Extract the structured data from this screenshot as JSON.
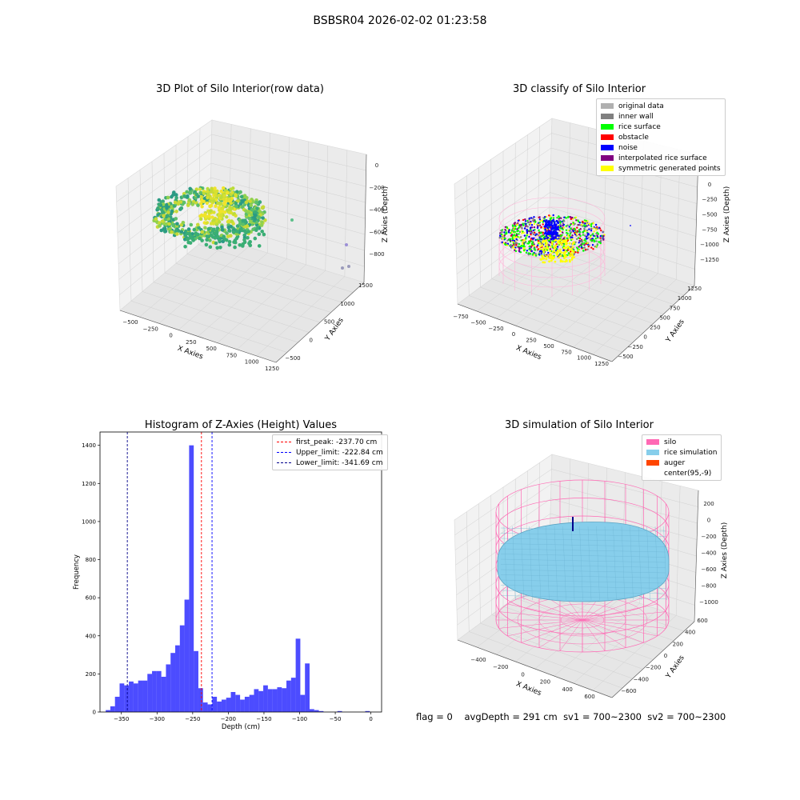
{
  "figure": {
    "suptitle": "BSBSR04 2026-02-02 01:23:58",
    "status_line": {
      "flag": "flag = 0",
      "avg_depth": "avgDepth = 291 cm",
      "sv1": "sv1 = 700~2300",
      "sv2": "sv2 = 700~2300"
    }
  },
  "panels": {
    "raw": {
      "title": "3D Plot of Silo Interior(row data)",
      "xlabel": "X Axies",
      "ylabel": "Y Axies",
      "zlabel": "Z Axies (Depth)",
      "xticks": [
        "−500",
        "−250",
        "0",
        "250",
        "500",
        "750",
        "1000",
        "1250"
      ],
      "yticks": [
        "−500",
        "0",
        "500",
        "1000",
        "1500"
      ],
      "zticks": [
        "0",
        "−200",
        "−400",
        "−600",
        "−800"
      ]
    },
    "classify": {
      "title": "3D classify of Silo Interior",
      "xlabel": "X Axies",
      "ylabel": "Y Axies",
      "zlabel": "Z Axies (Depth)",
      "xticks": [
        "−750",
        "−500",
        "−250",
        "0",
        "250",
        "500",
        "750",
        "1000",
        "1250"
      ],
      "yticks": [
        "−500",
        "−250",
        "0",
        "250",
        "500",
        "750",
        "1000",
        "1250"
      ],
      "zticks": [
        "250",
        "0",
        "−250",
        "−500",
        "−750",
        "−1000",
        "−1250"
      ],
      "legend": [
        {
          "label": "original data",
          "color": "#b0b0b0"
        },
        {
          "label": "inner wall",
          "color": "#808080"
        },
        {
          "label": "rice surface",
          "color": "#00ff00"
        },
        {
          "label": "obstacle",
          "color": "#ff0000"
        },
        {
          "label": "noise",
          "color": "#0000ff"
        },
        {
          "label": "interpolated rice surface",
          "color": "#800080"
        },
        {
          "label": "symmetric generated points",
          "color": "#ffff00"
        }
      ]
    },
    "simulation": {
      "title": "3D simulation of Silo Interior",
      "xlabel": "X Axies",
      "ylabel": "Y Axies",
      "zlabel": "Z Axies (Depth)",
      "xticks": [
        "−400",
        "−200",
        "0",
        "200",
        "400",
        "600"
      ],
      "yticks": [
        "−600",
        "−400",
        "−200",
        "0",
        "200",
        "400",
        "600"
      ],
      "zticks": [
        "200",
        "0",
        "−200",
        "−400",
        "−600",
        "−800",
        "−1000"
      ],
      "legend": [
        {
          "label": "silo",
          "color": "#ff69b4"
        },
        {
          "label": "rice simulation",
          "color": "#87ceeb"
        },
        {
          "label": "auger",
          "color": "#ff4500"
        },
        {
          "label": "center(95,-9)",
          "color": "none"
        }
      ]
    }
  },
  "chart_data": {
    "type": "bar",
    "title": "Histogram of Z-Axies (Height) Values",
    "xlabel": "Depth (cm)",
    "ylabel": "Frequency",
    "xlim": [
      -380,
      15
    ],
    "ylim": [
      0,
      1470
    ],
    "bin_width": 6.5,
    "xticks": [
      -350,
      -300,
      -250,
      -200,
      -150,
      -100,
      -50,
      0
    ],
    "yticks": [
      0,
      200,
      400,
      600,
      800,
      1000,
      1200,
      1400
    ],
    "bar_color": "#0000ff",
    "bin_starts": [
      -372,
      -365.5,
      -359,
      -352.5,
      -346,
      -339.5,
      -333,
      -326.5,
      -320,
      -313.5,
      -307,
      -300.5,
      -294,
      -287.5,
      -281,
      -274.5,
      -268,
      -261.5,
      -255,
      -248.5,
      -242,
      -235.5,
      -229,
      -222.5,
      -216,
      -209.5,
      -203,
      -196.5,
      -190,
      -183.5,
      -177,
      -170.5,
      -164,
      -157.5,
      -151,
      -144.5,
      -138,
      -131.5,
      -125,
      -118.5,
      -112,
      -105.5,
      -99,
      -92.5,
      -86,
      -79.5,
      -73,
      -66.5,
      -60,
      -53.5,
      -47,
      -40.5,
      -34,
      -27.5,
      -21,
      -14.5,
      -8,
      -1.5
    ],
    "values": [
      10,
      30,
      80,
      150,
      140,
      160,
      150,
      165,
      165,
      200,
      215,
      215,
      185,
      250,
      310,
      350,
      455,
      590,
      1400,
      320,
      125,
      50,
      40,
      80,
      55,
      65,
      75,
      105,
      90,
      65,
      80,
      90,
      120,
      110,
      140,
      120,
      120,
      130,
      125,
      165,
      180,
      385,
      90,
      255,
      15,
      10,
      5,
      0,
      0,
      0,
      5,
      0,
      0,
      0,
      0,
      0,
      5,
      0
    ],
    "lines": [
      {
        "label": "first_peak: -237.70 cm",
        "x": -237.7,
        "color": "#ff0000"
      },
      {
        "label": "Upper_limit: -222.84 cm",
        "x": -222.84,
        "color": "#0000ff"
      },
      {
        "label": "Lower_limit: -341.69 cm",
        "x": -341.69,
        "color": "#00008b"
      }
    ]
  }
}
